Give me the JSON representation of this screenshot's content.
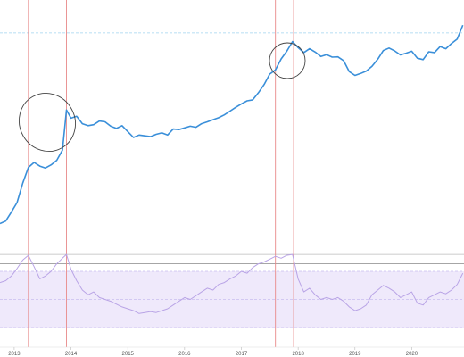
{
  "colors": {
    "price_line": "#3a8fd9",
    "rsi_line": "#b9a4e6",
    "rsi_band_fill": "#efe9fb",
    "marker_line": "#e88a8a",
    "reference_dashed": "#9fd3ef",
    "level_line": "#888888",
    "highlight_circle": "#444444"
  },
  "chart_data": [
    {
      "type": "line",
      "name": "price",
      "scale": "log",
      "x": [
        2012.75,
        2012.85,
        2012.95,
        2013.05,
        2013.15,
        2013.25,
        2013.35,
        2013.45,
        2013.55,
        2013.65,
        2013.75,
        2013.85,
        2013.92,
        2014.0,
        2014.1,
        2014.2,
        2014.3,
        2014.4,
        2014.5,
        2014.6,
        2014.7,
        2014.8,
        2014.9,
        2015.0,
        2015.1,
        2015.2,
        2015.3,
        2015.4,
        2015.5,
        2015.6,
        2015.7,
        2015.8,
        2015.9,
        2016.0,
        2016.1,
        2016.2,
        2016.3,
        2016.4,
        2016.5,
        2016.6,
        2016.7,
        2016.8,
        2016.9,
        2017.0,
        2017.1,
        2017.2,
        2017.3,
        2017.4,
        2017.5,
        2017.6,
        2017.7,
        2017.8,
        2017.9,
        2018.0,
        2018.1,
        2018.2,
        2018.3,
        2018.4,
        2018.5,
        2018.6,
        2018.7,
        2018.8,
        2018.9,
        2019.0,
        2019.1,
        2019.2,
        2019.3,
        2019.4,
        2019.5,
        2019.6,
        2019.7,
        2019.8,
        2019.9,
        2020.0,
        2020.1,
        2020.2,
        2020.3,
        2020.4,
        2020.5,
        2020.6,
        2020.7,
        2020.8,
        2020.9
      ],
      "y": [
        9.5,
        10.5,
        15,
        22,
        48,
        90,
        110,
        95,
        88,
        100,
        120,
        180,
        900,
        650,
        700,
        520,
        480,
        500,
        580,
        560,
        470,
        430,
        480,
        380,
        300,
        330,
        320,
        310,
        340,
        360,
        330,
        420,
        410,
        440,
        470,
        450,
        520,
        560,
        610,
        660,
        740,
        860,
        1000,
        1150,
        1300,
        1350,
        1800,
        2500,
        3800,
        4500,
        7000,
        9500,
        14000,
        11000,
        9000,
        10500,
        9200,
        7700,
        8300,
        7500,
        7600,
        6500,
        4200,
        3600,
        3900,
        4300,
        5200,
        6900,
        9800,
        10800,
        9600,
        8200,
        8800,
        9500,
        7200,
        6800,
        9300,
        9000,
        11500,
        10500,
        13000,
        15500,
        27000
      ],
      "reference_lines": [
        19800
      ]
    },
    {
      "type": "line",
      "name": "rsi",
      "x": [
        2012.75,
        2012.85,
        2012.95,
        2013.05,
        2013.15,
        2013.25,
        2013.35,
        2013.45,
        2013.55,
        2013.65,
        2013.75,
        2013.85,
        2013.92,
        2014.0,
        2014.1,
        2014.2,
        2014.3,
        2014.4,
        2014.5,
        2014.6,
        2014.7,
        2014.8,
        2014.9,
        2015.0,
        2015.1,
        2015.2,
        2015.3,
        2015.4,
        2015.5,
        2015.6,
        2015.7,
        2015.8,
        2015.9,
        2016.0,
        2016.1,
        2016.2,
        2016.3,
        2016.4,
        2016.5,
        2016.6,
        2016.7,
        2016.8,
        2016.9,
        2017.0,
        2017.1,
        2017.2,
        2017.3,
        2017.4,
        2017.5,
        2017.6,
        2017.7,
        2017.8,
        2017.9,
        2018.0,
        2018.1,
        2018.2,
        2018.3,
        2018.4,
        2018.5,
        2018.6,
        2018.7,
        2018.8,
        2018.9,
        2019.0,
        2019.1,
        2019.2,
        2019.3,
        2019.4,
        2019.5,
        2019.6,
        2019.7,
        2019.8,
        2019.9,
        2020.0,
        2020.1,
        2020.2,
        2020.3,
        2020.4,
        2020.5,
        2020.6,
        2020.7,
        2020.8,
        2020.9
      ],
      "y": [
        68,
        70,
        75,
        83,
        92,
        97,
        85,
        72,
        75,
        80,
        88,
        94,
        98,
        82,
        70,
        60,
        55,
        58,
        52,
        50,
        48,
        45,
        42,
        40,
        38,
        35,
        36,
        37,
        36,
        38,
        40,
        44,
        48,
        52,
        50,
        54,
        58,
        62,
        60,
        66,
        68,
        72,
        75,
        80,
        78,
        84,
        88,
        90,
        93,
        96,
        94,
        97,
        98,
        72,
        58,
        62,
        55,
        50,
        52,
        50,
        52,
        48,
        42,
        38,
        40,
        44,
        55,
        60,
        65,
        62,
        58,
        52,
        55,
        58,
        46,
        44,
        52,
        55,
        58,
        56,
        60,
        66,
        78
      ],
      "ylim": [
        0,
        100
      ],
      "band": [
        20,
        80
      ],
      "levels": [
        88,
        98
      ],
      "dashed_levels": [
        50
      ]
    }
  ],
  "x_axis": {
    "ticks": [
      2013,
      2014,
      2015,
      2016,
      2017,
      2018,
      2019,
      2020
    ],
    "tick_labels": [
      "2013",
      "2014",
      "2015",
      "2016",
      "2017",
      "2018",
      "2019",
      "2020"
    ]
  },
  "markers": [
    2013.25,
    2013.92,
    2017.6,
    2017.92
  ]
}
